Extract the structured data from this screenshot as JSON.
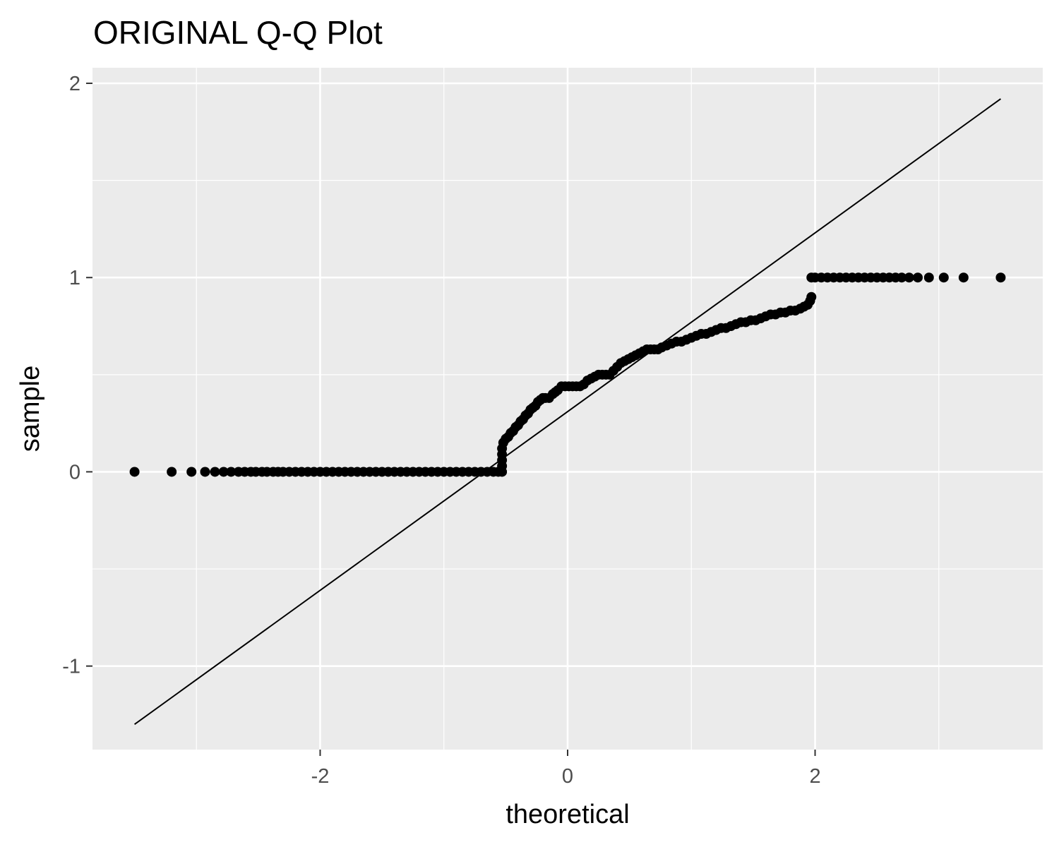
{
  "chart_data": {
    "type": "scatter",
    "title": "ORIGINAL Q-Q Plot",
    "xlabel": "theoretical",
    "ylabel": "sample",
    "xlim": [
      -3.84,
      3.84
    ],
    "ylim": [
      -1.43,
      2.08
    ],
    "x_ticks": [
      -2,
      0,
      2
    ],
    "x_tick_labels": [
      "-2",
      "0",
      "2"
    ],
    "y_ticks": [
      -1,
      0,
      1,
      2
    ],
    "y_tick_labels": [
      "-1",
      "0",
      "1",
      "2"
    ],
    "x_minor_gridlines": [
      -3,
      -1,
      1,
      3
    ],
    "y_minor_gridlines": [
      -0.5,
      0.5,
      1.5
    ],
    "grid": true,
    "panel_background": "#EBEBEB",
    "point_color": "#000000",
    "line_color": "#000000",
    "reference_line": {
      "x": [
        -3.5,
        3.5
      ],
      "y": [
        -1.3,
        1.92
      ]
    },
    "series": [
      {
        "points": [
          [
            -3.5,
            0
          ],
          [
            -3.2,
            0
          ],
          [
            -3.04,
            0
          ],
          [
            -2.93,
            0
          ],
          [
            -2.85,
            0
          ],
          [
            -2.78,
            0
          ],
          [
            -2.72,
            0
          ],
          [
            -2.66,
            0
          ],
          [
            -2.61,
            0
          ],
          [
            -2.56,
            0
          ],
          [
            -2.52,
            0
          ],
          [
            -2.47,
            0
          ],
          [
            -2.43,
            0
          ],
          [
            -2.38,
            0
          ],
          [
            -2.34,
            0
          ],
          [
            -2.3,
            0
          ],
          [
            -2.25,
            0
          ],
          [
            -2.2,
            0
          ],
          [
            -2.15,
            0
          ],
          [
            -2.1,
            0
          ],
          [
            -2.05,
            0
          ],
          [
            -2.0,
            0
          ],
          [
            -1.95,
            0
          ],
          [
            -1.9,
            0
          ],
          [
            -1.85,
            0
          ],
          [
            -1.8,
            0
          ],
          [
            -1.75,
            0
          ],
          [
            -1.7,
            0
          ],
          [
            -1.65,
            0
          ],
          [
            -1.6,
            0
          ],
          [
            -1.55,
            0
          ],
          [
            -1.5,
            0
          ],
          [
            -1.45,
            0
          ],
          [
            -1.4,
            0
          ],
          [
            -1.35,
            0
          ],
          [
            -1.3,
            0
          ],
          [
            -1.25,
            0
          ],
          [
            -1.2,
            0
          ],
          [
            -1.15,
            0
          ],
          [
            -1.1,
            0
          ],
          [
            -1.05,
            0
          ],
          [
            -1.0,
            0
          ],
          [
            -0.95,
            0
          ],
          [
            -0.9,
            0
          ],
          [
            -0.85,
            0
          ],
          [
            -0.8,
            0
          ],
          [
            -0.75,
            0
          ],
          [
            -0.7,
            0
          ],
          [
            -0.65,
            0
          ],
          [
            -0.6,
            0
          ],
          [
            -0.56,
            0
          ],
          [
            -0.53,
            0
          ],
          [
            -0.53,
            0.03
          ],
          [
            -0.53,
            0.06
          ],
          [
            -0.53,
            0.09
          ],
          [
            -0.53,
            0.12
          ],
          [
            -0.52,
            0.15
          ],
          [
            -0.5,
            0.17
          ],
          [
            -0.48,
            0.18
          ],
          [
            -0.46,
            0.2
          ],
          [
            -0.44,
            0.21
          ],
          [
            -0.42,
            0.23
          ],
          [
            -0.4,
            0.24
          ],
          [
            -0.38,
            0.26
          ],
          [
            -0.36,
            0.27
          ],
          [
            -0.34,
            0.29
          ],
          [
            -0.32,
            0.3
          ],
          [
            -0.3,
            0.32
          ],
          [
            -0.28,
            0.33
          ],
          [
            -0.26,
            0.34
          ],
          [
            -0.24,
            0.36
          ],
          [
            -0.22,
            0.37
          ],
          [
            -0.2,
            0.38
          ],
          [
            -0.18,
            0.38
          ],
          [
            -0.15,
            0.38
          ],
          [
            -0.12,
            0.4
          ],
          [
            -0.1,
            0.41
          ],
          [
            -0.08,
            0.42
          ],
          [
            -0.05,
            0.44
          ],
          [
            -0.02,
            0.44
          ],
          [
            0.01,
            0.44
          ],
          [
            0.04,
            0.44
          ],
          [
            0.07,
            0.44
          ],
          [
            0.1,
            0.44
          ],
          [
            0.13,
            0.45
          ],
          [
            0.16,
            0.47
          ],
          [
            0.19,
            0.48
          ],
          [
            0.22,
            0.49
          ],
          [
            0.25,
            0.5
          ],
          [
            0.28,
            0.5
          ],
          [
            0.31,
            0.5
          ],
          [
            0.34,
            0.5
          ],
          [
            0.37,
            0.52
          ],
          [
            0.4,
            0.54
          ],
          [
            0.43,
            0.56
          ],
          [
            0.46,
            0.57
          ],
          [
            0.49,
            0.58
          ],
          [
            0.52,
            0.59
          ],
          [
            0.55,
            0.6
          ],
          [
            0.58,
            0.61
          ],
          [
            0.61,
            0.62
          ],
          [
            0.64,
            0.63
          ],
          [
            0.67,
            0.63
          ],
          [
            0.7,
            0.63
          ],
          [
            0.73,
            0.63
          ],
          [
            0.76,
            0.64
          ],
          [
            0.8,
            0.65
          ],
          [
            0.84,
            0.66
          ],
          [
            0.88,
            0.67
          ],
          [
            0.92,
            0.67
          ],
          [
            0.96,
            0.68
          ],
          [
            1.0,
            0.69
          ],
          [
            1.04,
            0.7
          ],
          [
            1.08,
            0.71
          ],
          [
            1.12,
            0.71
          ],
          [
            1.16,
            0.72
          ],
          [
            1.2,
            0.73
          ],
          [
            1.24,
            0.74
          ],
          [
            1.28,
            0.74
          ],
          [
            1.32,
            0.75
          ],
          [
            1.36,
            0.76
          ],
          [
            1.4,
            0.77
          ],
          [
            1.44,
            0.77
          ],
          [
            1.48,
            0.78
          ],
          [
            1.52,
            0.78
          ],
          [
            1.56,
            0.79
          ],
          [
            1.6,
            0.8
          ],
          [
            1.64,
            0.81
          ],
          [
            1.68,
            0.81
          ],
          [
            1.72,
            0.82
          ],
          [
            1.76,
            0.82
          ],
          [
            1.8,
            0.83
          ],
          [
            1.84,
            0.83
          ],
          [
            1.88,
            0.84
          ],
          [
            1.91,
            0.85
          ],
          [
            1.94,
            0.86
          ],
          [
            1.96,
            0.88
          ],
          [
            1.97,
            0.9
          ],
          [
            1.97,
            1
          ],
          [
            2.0,
            1
          ],
          [
            2.05,
            1
          ],
          [
            2.1,
            1
          ],
          [
            2.15,
            1
          ],
          [
            2.2,
            1
          ],
          [
            2.25,
            1
          ],
          [
            2.3,
            1
          ],
          [
            2.35,
            1
          ],
          [
            2.4,
            1
          ],
          [
            2.45,
            1
          ],
          [
            2.5,
            1
          ],
          [
            2.55,
            1
          ],
          [
            2.6,
            1
          ],
          [
            2.65,
            1
          ],
          [
            2.7,
            1
          ],
          [
            2.76,
            1
          ],
          [
            2.83,
            1
          ],
          [
            2.92,
            1
          ],
          [
            3.04,
            1
          ],
          [
            3.2,
            1
          ],
          [
            3.5,
            1
          ]
        ]
      }
    ]
  }
}
